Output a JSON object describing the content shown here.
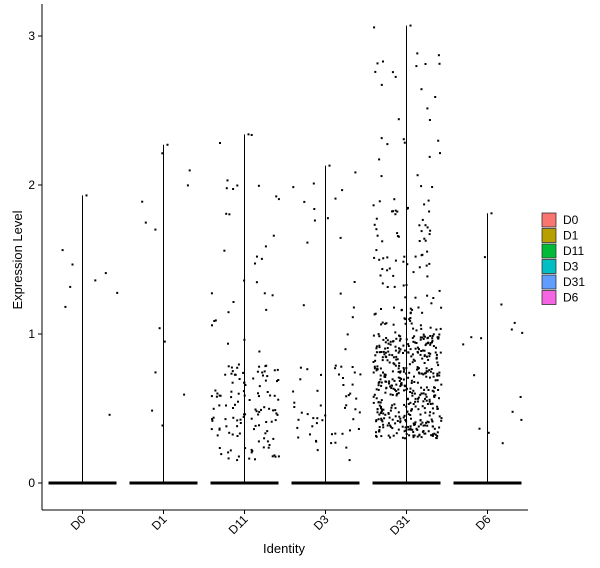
{
  "chart_data": {
    "type": "violin",
    "title": "",
    "xlabel": "Identity",
    "ylabel": "Expression Level",
    "ylim": [
      -0.18,
      3.2
    ],
    "yticks": [
      0,
      1,
      2,
      3
    ],
    "categories": [
      "D0",
      "D1",
      "D11",
      "D3",
      "D31",
      "D6"
    ],
    "max_values": [
      1.93,
      2.27,
      2.34,
      2.13,
      3.07,
      1.81
    ],
    "approx_nonzero_points": [
      8,
      12,
      150,
      70,
      560,
      15
    ],
    "legend": {
      "position": "right",
      "entries": [
        {
          "label": "D0",
          "color": "#F8766D"
        },
        {
          "label": "D1",
          "color": "#B79F00"
        },
        {
          "label": "D11",
          "color": "#00BA38"
        },
        {
          "label": "D3",
          "color": "#00BFC4"
        },
        {
          "label": "D31",
          "color": "#619CFF"
        },
        {
          "label": "D6",
          "color": "#F564E3"
        }
      ]
    },
    "grid": false
  }
}
